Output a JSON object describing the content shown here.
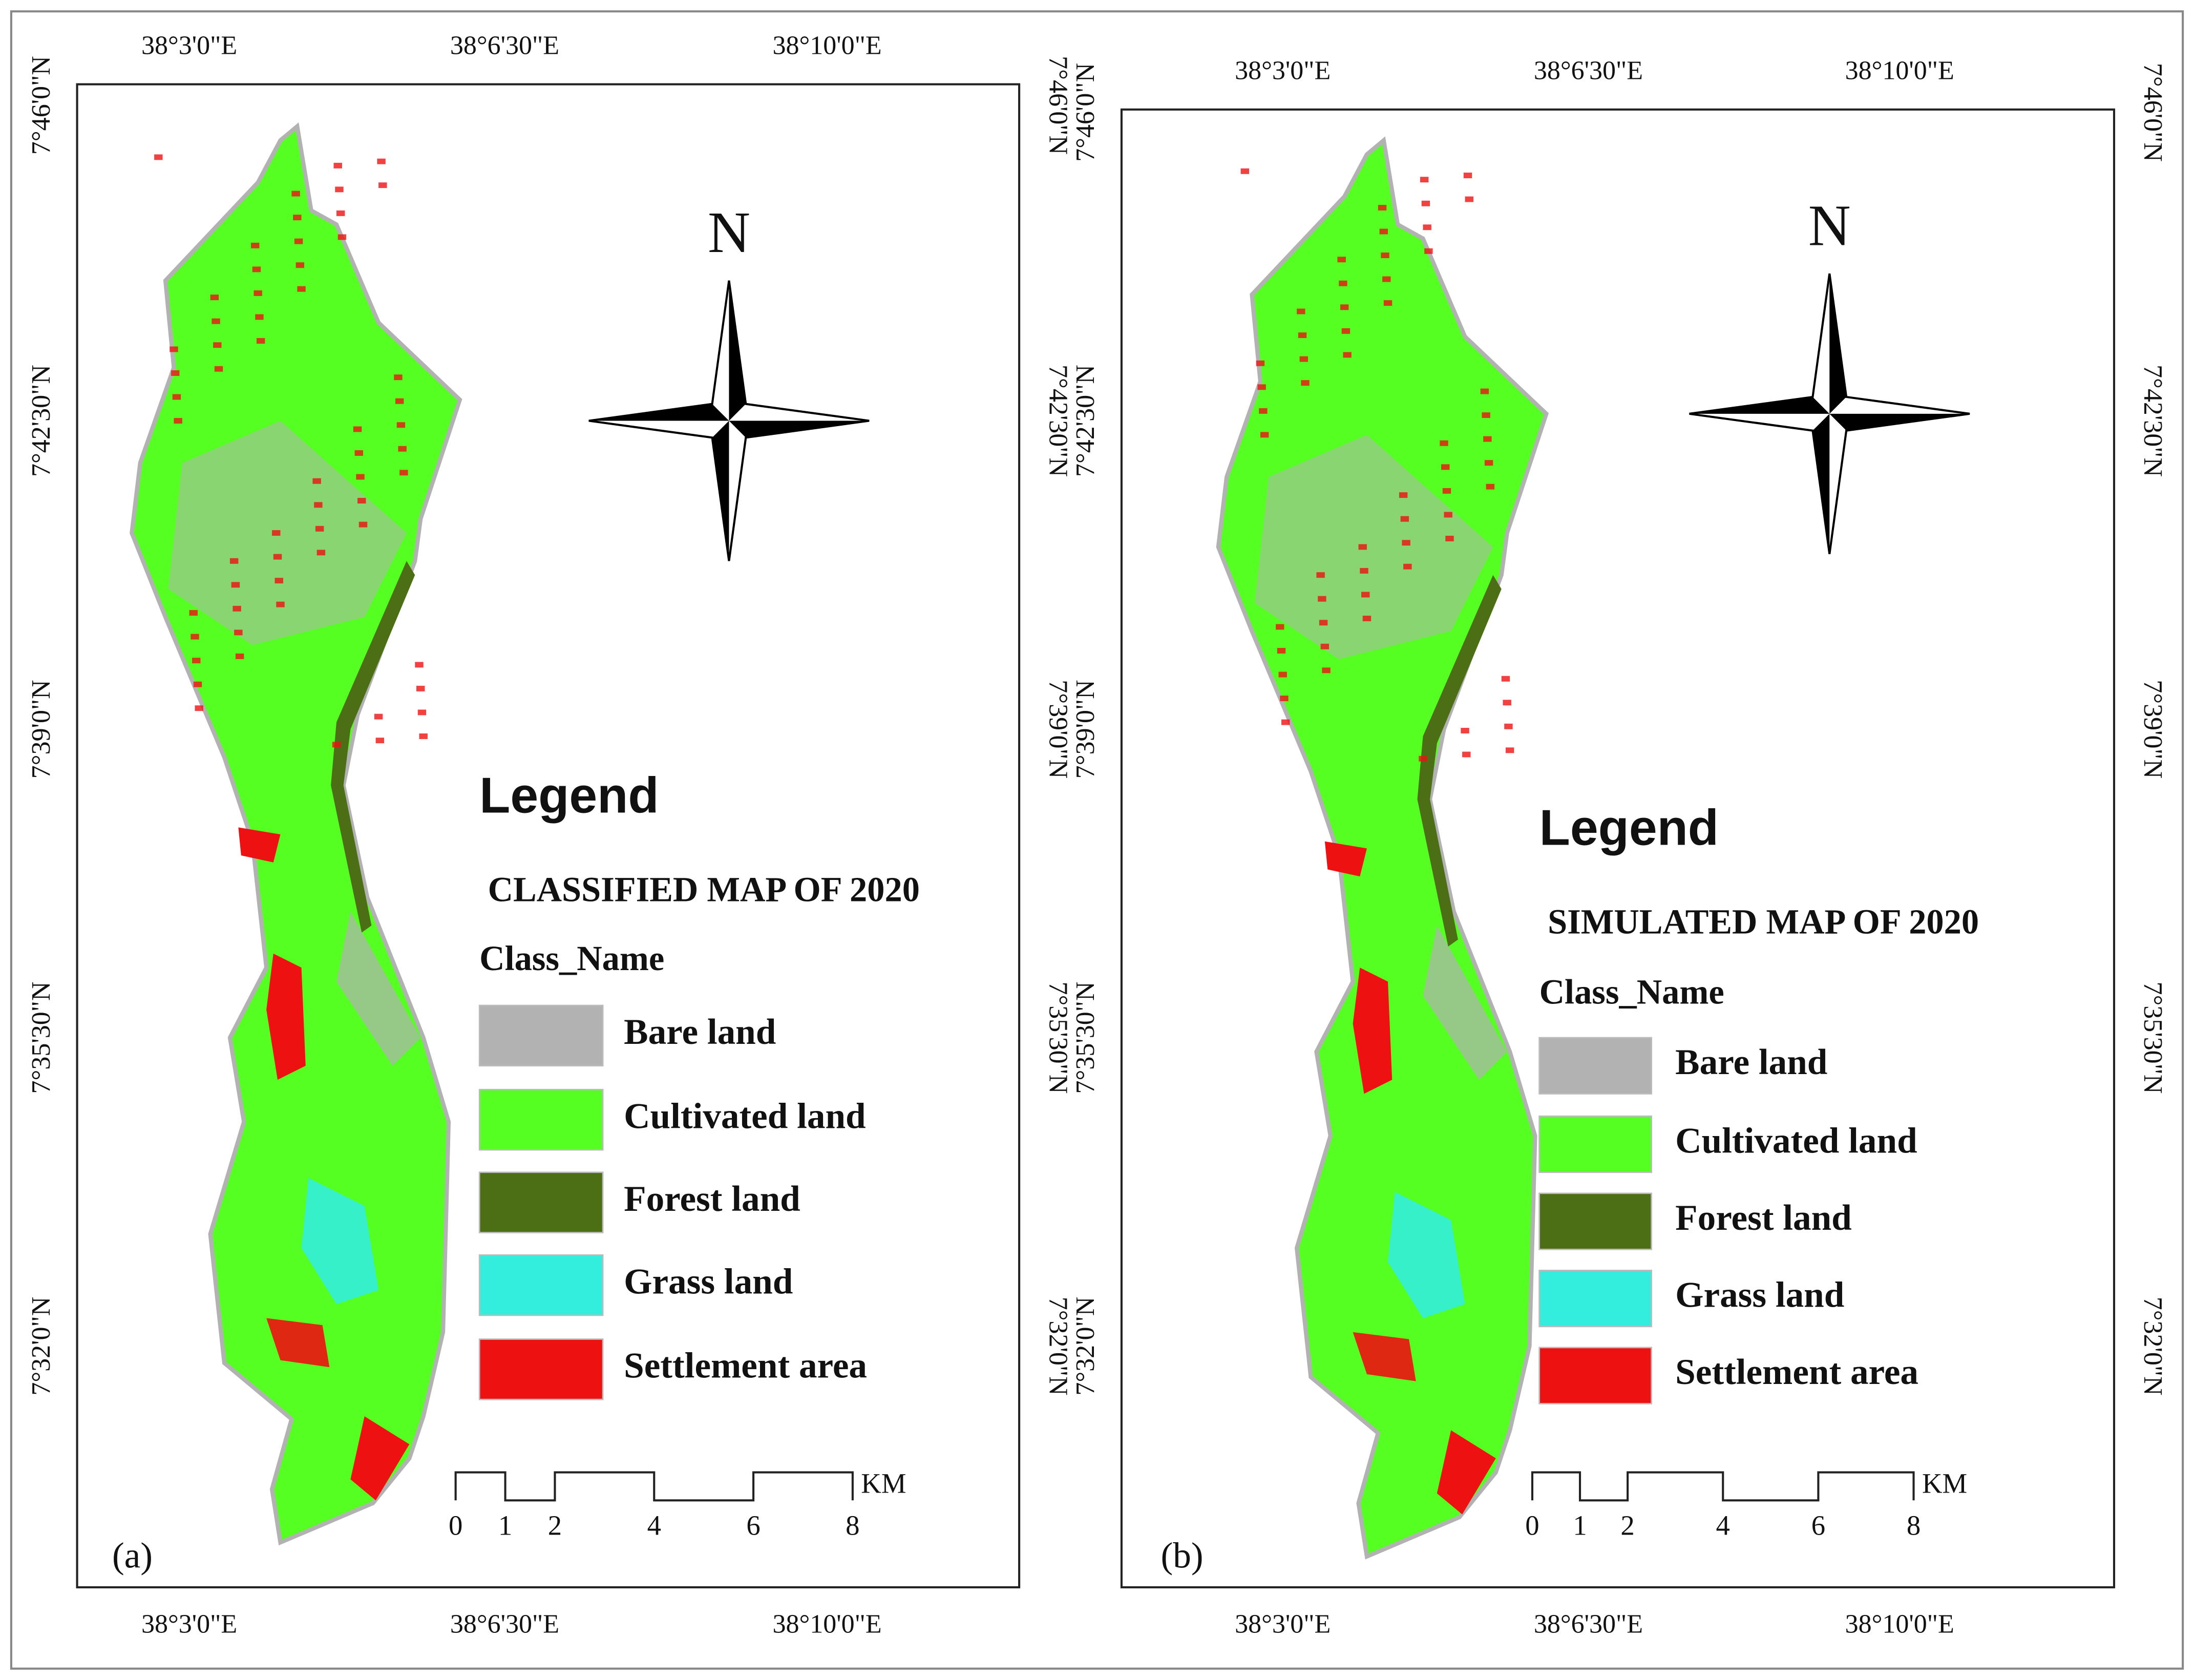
{
  "panels": [
    {
      "label": "(a)",
      "top_ticks": [
        "38°3'0\"E",
        "38°6'30\"E",
        "38°10'0\"E"
      ],
      "bottom_ticks": [
        "38°3'0\"E",
        "38°6'30\"E",
        "38°10'0\"E"
      ],
      "left_ticks": [
        "7°46'0\"N",
        "7°42'30\"N",
        "7°39'0\"N",
        "7°35'30\"N",
        "7°32'0\"N"
      ],
      "right_ticks": [
        "7°46'0\"N",
        "7°42'30\"N",
        "7°39'0\"N",
        "7°35'30\"N",
        "7°32'0\"N"
      ],
      "north": "N",
      "legend": {
        "heading": "Legend",
        "title": "CLASSIFIED MAP OF 2020",
        "class_heading": "Class_Name",
        "classes": [
          {
            "name": "Bare land",
            "color": "#b2b2b2"
          },
          {
            "name": "Cultivated land",
            "color": "#55ff22"
          },
          {
            "name": "Forest land",
            "color": "#4c6e14"
          },
          {
            "name": "Grass land",
            "color": "#33eedd"
          },
          {
            "name": "Settlement area",
            "color": "#ee1111"
          }
        ]
      },
      "scale": {
        "marks": [
          0,
          1,
          2,
          4,
          6,
          8
        ],
        "unit": "KM"
      }
    },
    {
      "label": "(b)",
      "top_ticks": [
        "38°3'0\"E",
        "38°6'30\"E",
        "38°10'0\"E"
      ],
      "bottom_ticks": [
        "38°3'0\"E",
        "38°6'30\"E",
        "38°10'0\"E"
      ],
      "left_ticks": [
        "7°46'0\"N",
        "7°42'30\"N",
        "7°39'0\"N",
        "7°35'30\"N",
        "7°32'0\"N"
      ],
      "right_ticks": [
        "7°46'0\"N",
        "7°42'30\"N",
        "7°39'0\"N",
        "7°35'30\"N",
        "7°32'0\"N"
      ],
      "north": "N",
      "legend": {
        "heading": "Legend",
        "title": "SIMULATED MAP OF 2020",
        "class_heading": "Class_Name",
        "classes": [
          {
            "name": "Bare land",
            "color": "#b2b2b2"
          },
          {
            "name": "Cultivated land",
            "color": "#55ff22"
          },
          {
            "name": "Forest land",
            "color": "#4c6e14"
          },
          {
            "name": "Grass land",
            "color": "#33eedd"
          },
          {
            "name": "Settlement area",
            "color": "#ee1111"
          }
        ]
      },
      "scale": {
        "marks": [
          0,
          1,
          2,
          4,
          6,
          8
        ],
        "unit": "KM"
      }
    }
  ]
}
